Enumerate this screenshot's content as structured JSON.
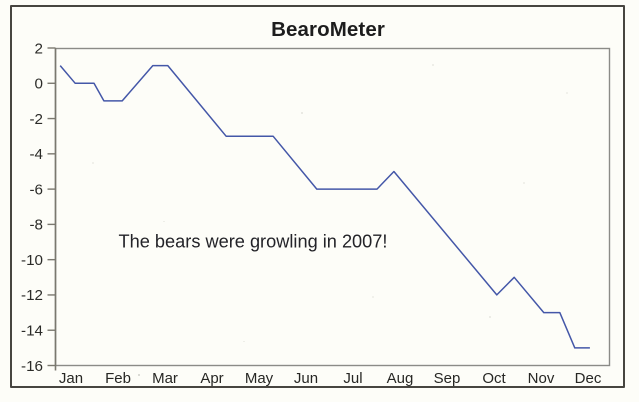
{
  "title": "BearoMeter",
  "chart_data": {
    "type": "line",
    "title": "BearoMeter",
    "categories": [
      "Jan",
      "Feb",
      "Mar",
      "Apr",
      "May",
      "Jun",
      "Jul",
      "Aug",
      "Sep",
      "Oct",
      "Nov",
      "Dec"
    ],
    "y_ticks": [
      2,
      0,
      -2,
      -4,
      -6,
      -8,
      -10,
      -12,
      -14,
      -16
    ],
    "ylim": [
      -16,
      2
    ],
    "grid": false,
    "legend": false,
    "annotation": {
      "text": "The bears were growling in 2007!"
    },
    "series": [
      {
        "name": "BearoMeter",
        "color": "#4457a8",
        "points_x_months": [
          -0.23,
          0.09,
          0.49,
          0.7,
          1.09,
          1.74,
          2.06,
          3.3,
          4.3,
          5.23,
          6.51,
          6.87,
          9.06,
          9.43,
          10.06,
          10.4,
          10.72,
          11.04
        ],
        "values": [
          1,
          0,
          0,
          -1,
          -1,
          1,
          1,
          -3,
          -3,
          -6,
          -6,
          -5,
          -12,
          -11,
          -13,
          -13,
          -15,
          -15
        ]
      }
    ]
  }
}
